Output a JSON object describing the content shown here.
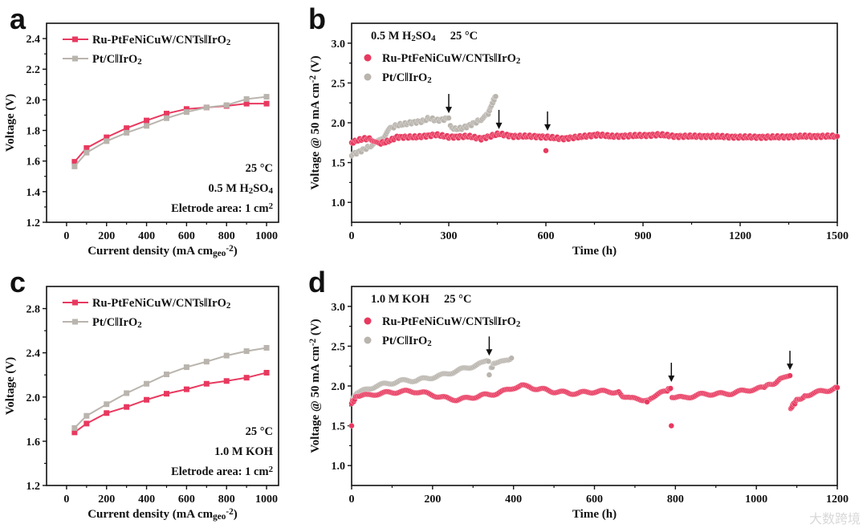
{
  "colors": {
    "ru": "#e8395f",
    "pt": "#b9b4ad",
    "axis": "#111111"
  },
  "watermark": "大数跨境",
  "chart_data": [
    {
      "panel": "a",
      "type": "line",
      "xlabel": "Current density (mA cm_{geo}^{-2})",
      "ylabel": "Voltage (V)",
      "xlim": [
        -100,
        1060
      ],
      "ylim": [
        1.2,
        2.5
      ],
      "xticks": [
        0,
        200,
        400,
        600,
        800,
        1000
      ],
      "yticks": [
        1.2,
        1.4,
        1.6,
        1.8,
        2.0,
        2.2,
        2.4
      ],
      "annotations": [
        "25 °C",
        "0.5 M H_{2}SO_{4}",
        "Eletrode area: 1 cm^{2}"
      ],
      "x": [
        40,
        100,
        200,
        300,
        400,
        500,
        600,
        700,
        800,
        900,
        1000
      ],
      "series": [
        {
          "name": "Ru-PtFeNiCuW/CNTs‖IrO_{2}",
          "color": "ru",
          "values": [
            1.595,
            1.685,
            1.755,
            1.815,
            1.865,
            1.91,
            1.94,
            1.95,
            1.96,
            1.975,
            1.975
          ]
        },
        {
          "name": "Pt/C‖IrO_{2}",
          "color": "pt",
          "values": [
            1.565,
            1.655,
            1.73,
            1.785,
            1.83,
            1.88,
            1.92,
            1.95,
            1.965,
            2.005,
            2.02
          ]
        }
      ]
    },
    {
      "panel": "b",
      "type": "scatter",
      "xlabel": "Time (h)",
      "ylabel": "Voltage @ 50 mA cm^{-2} (V)",
      "xlim": [
        0,
        1500
      ],
      "ylim": [
        0.75,
        3.25
      ],
      "xticks": [
        0,
        300,
        600,
        900,
        1200,
        1500
      ],
      "yticks": [
        1.0,
        1.5,
        2.0,
        2.5,
        3.0
      ],
      "header": "0.5 M H_{2}SO_{4}     25 °C",
      "arrows": [
        [
          300,
          2.12
        ],
        [
          455,
          1.92
        ],
        [
          605,
          1.9
        ]
      ],
      "series": [
        {
          "name": "Ru-PtFeNiCuW/CNTs‖IrO_{2}",
          "color": "ru",
          "points": [
            [
              0,
              1.75
            ],
            [
              20,
              1.78
            ],
            [
              40,
              1.8
            ],
            [
              60,
              1.8
            ],
            [
              80,
              1.74
            ],
            [
              100,
              1.75
            ],
            [
              120,
              1.78
            ],
            [
              140,
              1.82
            ],
            [
              200,
              1.82
            ],
            [
              260,
              1.85
            ],
            [
              300,
              1.82
            ],
            [
              360,
              1.83
            ],
            [
              400,
              1.8
            ],
            [
              455,
              1.86
            ],
            [
              500,
              1.83
            ],
            [
              560,
              1.83
            ],
            [
              600,
              1.82
            ],
            [
              650,
              1.8
            ],
            [
              700,
              1.82
            ],
            [
              760,
              1.85
            ],
            [
              800,
              1.83
            ],
            [
              900,
              1.84
            ],
            [
              950,
              1.85
            ],
            [
              1000,
              1.83
            ],
            [
              1100,
              1.83
            ],
            [
              1200,
              1.82
            ],
            [
              1300,
              1.82
            ],
            [
              1400,
              1.83
            ],
            [
              1500,
              1.83
            ]
          ],
          "outliers": [
            [
              600,
              1.65
            ]
          ]
        },
        {
          "name": "Pt/C‖IrO_{2}",
          "color": "pt",
          "segments": [
            [
              [
                0,
                1.6
              ],
              [
                20,
                1.63
              ],
              [
                40,
                1.67
              ],
              [
                60,
                1.71
              ],
              [
                80,
                1.76
              ],
              [
                100,
                1.83
              ],
              [
                120,
                1.93
              ],
              [
                140,
                1.97
              ],
              [
                160,
                1.98
              ],
              [
                180,
                2.0
              ],
              [
                200,
                2.01
              ],
              [
                220,
                2.02
              ],
              [
                240,
                2.06
              ],
              [
                260,
                2.03
              ],
              [
                280,
                2.04
              ],
              [
                300,
                2.06
              ]
            ],
            [
              [
                305,
                1.95
              ],
              [
                320,
                1.92
              ],
              [
                340,
                1.93
              ],
              [
                360,
                1.96
              ],
              [
                380,
                2.0
              ],
              [
                400,
                2.04
              ],
              [
                420,
                2.1
              ],
              [
                430,
                2.2
              ],
              [
                440,
                2.3
              ],
              [
                445,
                2.33
              ]
            ]
          ]
        }
      ]
    },
    {
      "panel": "c",
      "type": "line",
      "xlabel": "Current density (mA cm_{geo}^{-2})",
      "ylabel": "Voltage (V)",
      "xlim": [
        -100,
        1060
      ],
      "ylim": [
        1.2,
        3.0
      ],
      "xticks": [
        0,
        200,
        400,
        600,
        800,
        1000
      ],
      "yticks": [
        1.2,
        1.6,
        2.0,
        2.4,
        2.8
      ],
      "annotations": [
        "25 °C",
        "1.0 M KOH",
        "Eletrode area: 1 cm^{2}"
      ],
      "x": [
        40,
        100,
        200,
        300,
        400,
        500,
        600,
        700,
        800,
        900,
        1000
      ],
      "series": [
        {
          "name": "Ru-PtFeNiCuW/CNTs‖IrO_{2}",
          "color": "ru",
          "values": [
            1.68,
            1.76,
            1.855,
            1.91,
            1.975,
            2.03,
            2.07,
            2.12,
            2.145,
            2.175,
            2.22
          ]
        },
        {
          "name": "Pt/C‖IrO_{2}",
          "color": "pt",
          "values": [
            1.72,
            1.83,
            1.935,
            2.035,
            2.12,
            2.205,
            2.27,
            2.32,
            2.375,
            2.415,
            2.445
          ]
        }
      ]
    },
    {
      "panel": "d",
      "type": "scatter",
      "xlabel": "Time (h)",
      "ylabel": "Voltage @ 50 mA cm^{-2} (V)",
      "xlim": [
        0,
        1200
      ],
      "ylim": [
        0.75,
        3.25
      ],
      "xticks": [
        0,
        200,
        400,
        600,
        800,
        1000,
        1200
      ],
      "yticks": [
        1.0,
        1.5,
        2.0,
        2.5,
        3.0
      ],
      "header": "1.0 M KOH     25 °C",
      "arrows": [
        [
          340,
          2.38
        ],
        [
          790,
          2.05
        ],
        [
          1083,
          2.2
        ]
      ],
      "series": [
        {
          "name": "Ru-PtFeNiCuW/CNTs‖IrO_{2}",
          "color": "ru",
          "segments": [
            [
              [
                0,
                1.78
              ],
              [
                10,
                1.85
              ],
              [
                20,
                1.88
              ],
              [
                40,
                1.88
              ],
              [
                60,
                1.9
              ],
              [
                80,
                1.91
              ],
              [
                100,
                1.92
              ],
              [
                120,
                1.93
              ],
              [
                140,
                1.93
              ],
              [
                160,
                1.93
              ],
              [
                180,
                1.91
              ],
              [
                200,
                1.89
              ],
              [
                220,
                1.86
              ],
              [
                240,
                1.84
              ],
              [
                260,
                1.83
              ],
              [
                280,
                1.84
              ],
              [
                300,
                1.86
              ],
              [
                320,
                1.88
              ],
              [
                340,
                1.89
              ],
              [
                360,
                1.91
              ],
              [
                380,
                1.94
              ],
              [
                400,
                1.98
              ],
              [
                420,
                2.0
              ],
              [
                440,
                1.99
              ],
              [
                460,
                1.96
              ],
              [
                480,
                1.95
              ],
              [
                500,
                1.93
              ],
              [
                520,
                1.92
              ],
              [
                540,
                1.91
              ],
              [
                560,
                1.91
              ],
              [
                580,
                1.92
              ],
              [
                600,
                1.93
              ],
              [
                620,
                1.93
              ],
              [
                640,
                1.93
              ],
              [
                660,
                1.92
              ],
              [
                670,
                1.88
              ],
              [
                690,
                1.84
              ],
              [
                710,
                1.84
              ],
              [
                730,
                1.82
              ],
              [
                740,
                1.86
              ],
              [
                760,
                1.9
              ],
              [
                780,
                1.94
              ],
              [
                788,
                1.97
              ]
            ],
            [
              [
                792,
                1.87
              ],
              [
                800,
                1.86
              ],
              [
                820,
                1.85
              ],
              [
                840,
                1.87
              ],
              [
                860,
                1.89
              ],
              [
                880,
                1.9
              ],
              [
                900,
                1.9
              ],
              [
                920,
                1.9
              ],
              [
                940,
                1.91
              ],
              [
                960,
                1.93
              ],
              [
                980,
                1.95
              ],
              [
                1000,
                1.96
              ],
              [
                1020,
                1.98
              ],
              [
                1040,
                2.03
              ],
              [
                1060,
                2.08
              ],
              [
                1083,
                2.13
              ]
            ],
            [
              [
                1085,
                1.71
              ],
              [
                1090,
                1.76
              ],
              [
                1100,
                1.82
              ],
              [
                1120,
                1.88
              ],
              [
                1140,
                1.91
              ],
              [
                1160,
                1.93
              ],
              [
                1180,
                1.95
              ],
              [
                1200,
                1.98
              ]
            ]
          ],
          "outliers": [
            [
              0,
              1.5
            ],
            [
              790,
              1.5
            ],
            [
              730,
              1.8
            ]
          ]
        },
        {
          "name": "Pt/C‖IrO_{2}",
          "color": "pt",
          "segments": [
            [
              [
                0,
                1.8
              ],
              [
                10,
                1.88
              ],
              [
                20,
                1.92
              ],
              [
                40,
                1.96
              ],
              [
                60,
                2.0
              ],
              [
                80,
                2.02
              ],
              [
                100,
                2.04
              ],
              [
                120,
                2.06
              ],
              [
                140,
                2.07
              ],
              [
                160,
                2.07
              ],
              [
                180,
                2.09
              ],
              [
                200,
                2.11
              ],
              [
                220,
                2.13
              ],
              [
                240,
                2.16
              ],
              [
                260,
                2.19
              ],
              [
                280,
                2.22
              ],
              [
                300,
                2.25
              ],
              [
                320,
                2.28
              ],
              [
                338,
                2.31
              ]
            ],
            [
              [
                345,
                2.23
              ],
              [
                355,
                2.3
              ],
              [
                370,
                2.33
              ],
              [
                385,
                2.34
              ],
              [
                395,
                2.35
              ]
            ]
          ],
          "outliers": [
            [
              340,
              2.14
            ]
          ]
        }
      ]
    }
  ]
}
